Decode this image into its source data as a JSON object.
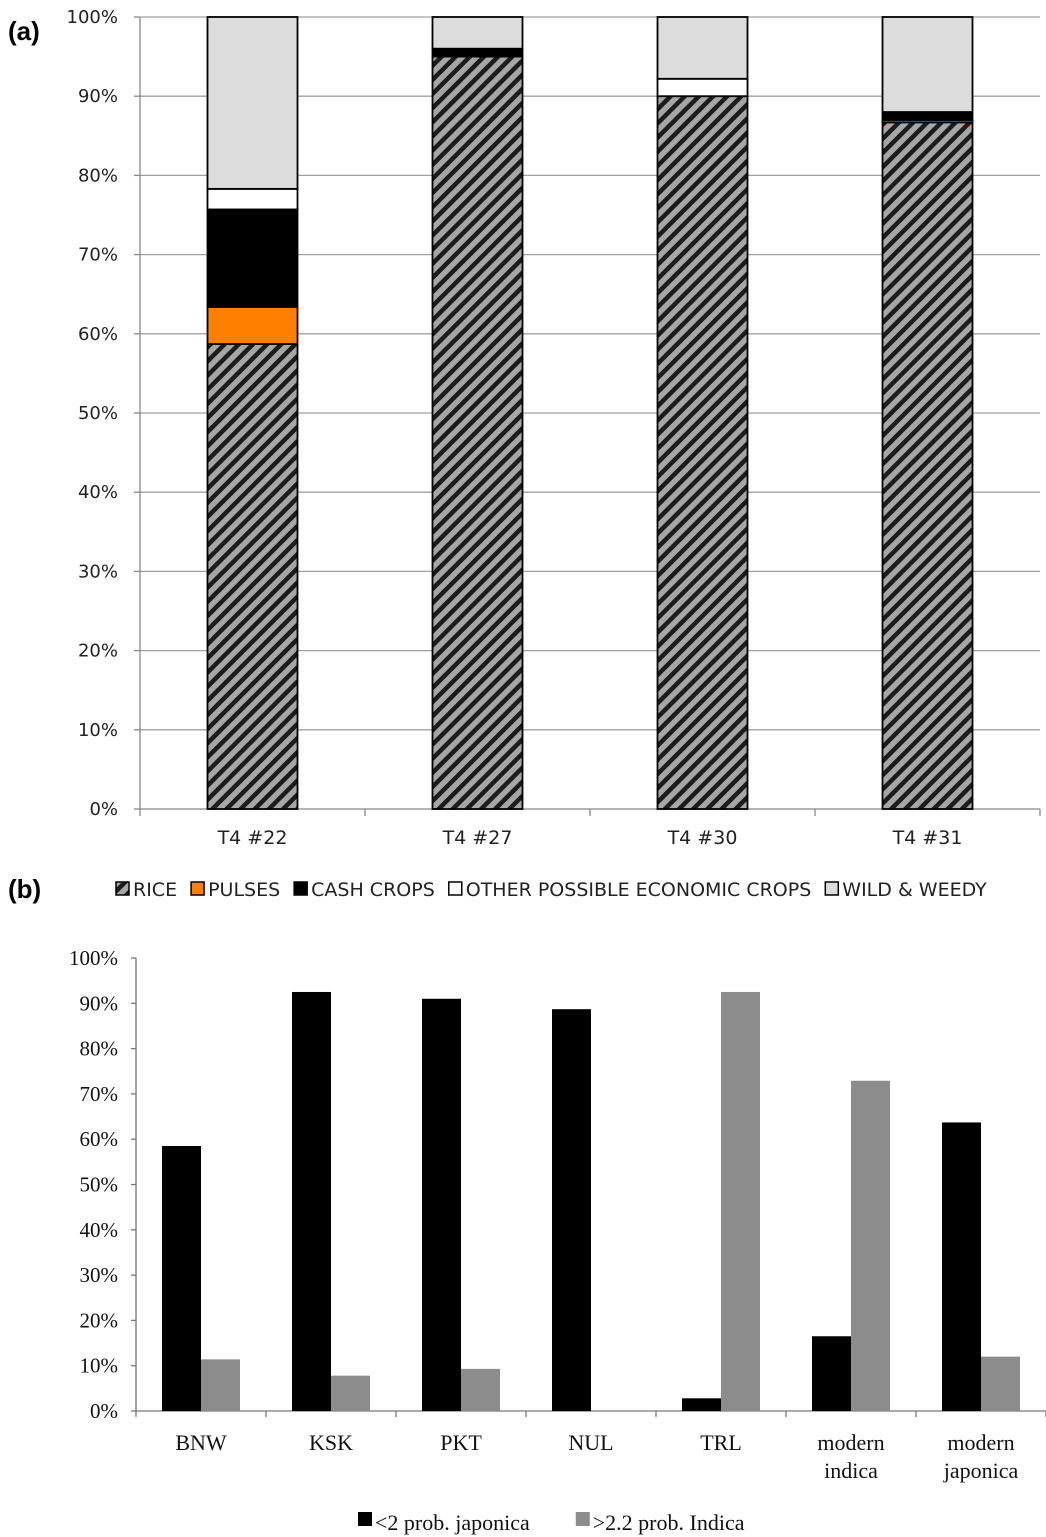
{
  "panel_labels": {
    "a": "(a)",
    "b": "(b)"
  },
  "chart_data": [
    {
      "type": "bar",
      "stacked": true,
      "panel": "(a)",
      "categories": [
        "T4 #22",
        "T4 #27",
        "T4 #30",
        "T4 #31"
      ],
      "ylim": [
        0,
        100
      ],
      "yticks": [
        "0%",
        "10%",
        "20%",
        "30%",
        "40%",
        "50%",
        "60%",
        "70%",
        "80%",
        "90%",
        "100%"
      ],
      "grid": true,
      "legend_position": "bottom",
      "series": [
        {
          "name": "RICE",
          "color": "#9a9a9a",
          "pattern": "diagonal-hatch",
          "values": [
            58.7,
            95,
            90,
            86.7
          ]
        },
        {
          "name": "PULSES",
          "color": "#ff8000",
          "values": [
            4.7,
            0,
            0,
            0.3
          ]
        },
        {
          "name": "CASH CROPS",
          "color": "#000000",
          "values": [
            12.3,
            1,
            0,
            1
          ]
        },
        {
          "name": "OTHER POSSIBLE ECONOMIC CROPS",
          "color": "#ffffff",
          "values": [
            2.6,
            0,
            2.2,
            0
          ]
        },
        {
          "name": "WILD & WEEDY",
          "color": "#dcdcdc",
          "values": [
            21.7,
            4,
            7.8,
            12
          ]
        }
      ]
    },
    {
      "type": "bar",
      "panel": "(b)",
      "categories": [
        "BNW",
        "KSK",
        "PKT",
        "NUL",
        "TRL",
        "modern indica",
        "modern japonica"
      ],
      "category_lines": [
        [
          "BNW"
        ],
        [
          "KSK"
        ],
        [
          "PKT"
        ],
        [
          "NUL"
        ],
        [
          "TRL"
        ],
        [
          "modern",
          "indica"
        ],
        [
          "modern",
          "japonica"
        ]
      ],
      "ylim": [
        0,
        100
      ],
      "yticks": [
        "0%",
        "10%",
        "20%",
        "30%",
        "40%",
        "50%",
        "60%",
        "70%",
        "80%",
        "90%",
        "100%"
      ],
      "grid": false,
      "legend_position": "bottom",
      "series": [
        {
          "name": "<2 prob. japonica",
          "color": "#000000",
          "values": [
            58.5,
            92.5,
            91,
            88.7,
            2.8,
            16.5,
            63.7
          ]
        },
        {
          "name": ">2.2 prob. Indica",
          "color": "#8c8c8c",
          "values": [
            11.4,
            7.8,
            9.3,
            0,
            92.5,
            72.9,
            12
          ]
        }
      ]
    }
  ]
}
